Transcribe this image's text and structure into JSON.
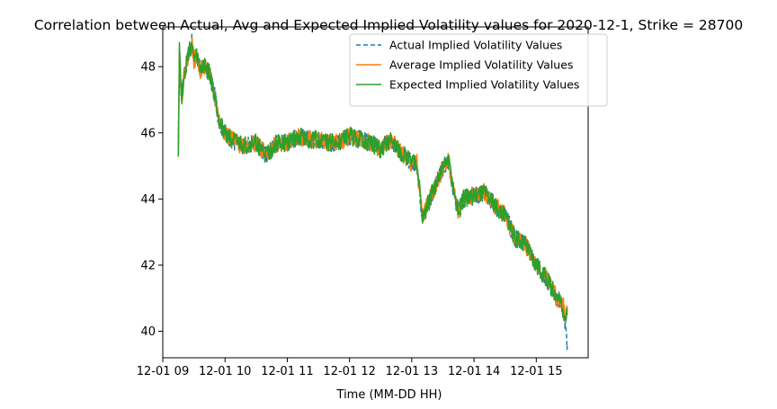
{
  "chart_data": {
    "type": "line",
    "title": "Correlation between Actual, Avg and Expected Implied Volatility values for 2020-12-1, Strike = 28700",
    "xlabel": "Time (MM-DD HH)",
    "ylabel": "",
    "x_ticks": [
      "12-01 09",
      "12-01 10",
      "12-01 11",
      "12-01 12",
      "12-01 13",
      "12-01 14",
      "12-01 15"
    ],
    "y_ticks": [
      "40",
      "42",
      "44",
      "46",
      "48"
    ],
    "xlim": [
      "2020-12-01 09:00",
      "2020-12-01 15:50"
    ],
    "ylim": [
      39.2,
      49.2
    ],
    "grid": false,
    "legend_position": "top-right",
    "series": [
      {
        "name": "Actual Implied Volatility Values",
        "color": "#1f77b4",
        "style": "dashed",
        "x": [
          "2020-12-01 09:15",
          "2020-12-01 09:16",
          "2020-12-01 09:18",
          "2020-12-01 09:20",
          "2020-12-01 09:22",
          "2020-12-01 09:25",
          "2020-12-01 09:28",
          "2020-12-01 09:30",
          "2020-12-01 09:33",
          "2020-12-01 09:36",
          "2020-12-01 09:40",
          "2020-12-01 09:45",
          "2020-12-01 09:50",
          "2020-12-01 09:55",
          "2020-12-01 10:00",
          "2020-12-01 10:10",
          "2020-12-01 10:20",
          "2020-12-01 10:30",
          "2020-12-01 10:40",
          "2020-12-01 10:50",
          "2020-12-01 11:00",
          "2020-12-01 11:10",
          "2020-12-01 11:20",
          "2020-12-01 11:30",
          "2020-12-01 11:40",
          "2020-12-01 11:50",
          "2020-12-01 12:00",
          "2020-12-01 12:10",
          "2020-12-01 12:20",
          "2020-12-01 12:30",
          "2020-12-01 12:40",
          "2020-12-01 12:50",
          "2020-12-01 13:00",
          "2020-12-01 13:05",
          "2020-12-01 13:10",
          "2020-12-01 13:15",
          "2020-12-01 13:25",
          "2020-12-01 13:35",
          "2020-12-01 13:40",
          "2020-12-01 13:45",
          "2020-12-01 13:50",
          "2020-12-01 14:00",
          "2020-12-01 14:10",
          "2020-12-01 14:20",
          "2020-12-01 14:30",
          "2020-12-01 14:40",
          "2020-12-01 14:50",
          "2020-12-01 15:00",
          "2020-12-01 15:10",
          "2020-12-01 15:20",
          "2020-12-01 15:25",
          "2020-12-01 15:28",
          "2020-12-01 15:30"
        ],
        "y": [
          45.4,
          48.6,
          47.0,
          47.6,
          48.0,
          48.4,
          48.7,
          48.2,
          48.3,
          47.9,
          48.0,
          47.8,
          47.1,
          46.3,
          46.0,
          45.7,
          45.6,
          45.7,
          45.3,
          45.7,
          45.7,
          45.9,
          45.8,
          45.8,
          45.7,
          45.7,
          45.9,
          45.8,
          45.7,
          45.5,
          45.8,
          45.4,
          45.1,
          45.1,
          43.4,
          43.8,
          44.6,
          45.2,
          44.3,
          43.6,
          44.0,
          44.1,
          44.2,
          43.8,
          43.5,
          42.8,
          42.6,
          42.0,
          41.6,
          41.0,
          40.8,
          40.2,
          39.6
        ]
      },
      {
        "name": "Average Implied Volatility Values",
        "color": "#ff7f0e",
        "style": "solid",
        "x": [
          "2020-12-01 09:15",
          "2020-12-01 09:16",
          "2020-12-01 09:18",
          "2020-12-01 09:20",
          "2020-12-01 09:22",
          "2020-12-01 09:25",
          "2020-12-01 09:28",
          "2020-12-01 09:30",
          "2020-12-01 09:33",
          "2020-12-01 09:36",
          "2020-12-01 09:40",
          "2020-12-01 09:45",
          "2020-12-01 09:50",
          "2020-12-01 09:55",
          "2020-12-01 10:00",
          "2020-12-01 10:10",
          "2020-12-01 10:20",
          "2020-12-01 10:30",
          "2020-12-01 10:40",
          "2020-12-01 10:50",
          "2020-12-01 11:00",
          "2020-12-01 11:10",
          "2020-12-01 11:20",
          "2020-12-01 11:30",
          "2020-12-01 11:40",
          "2020-12-01 11:50",
          "2020-12-01 12:00",
          "2020-12-01 12:10",
          "2020-12-01 12:20",
          "2020-12-01 12:30",
          "2020-12-01 12:40",
          "2020-12-01 12:50",
          "2020-12-01 13:00",
          "2020-12-01 13:05",
          "2020-12-01 13:10",
          "2020-12-01 13:15",
          "2020-12-01 13:25",
          "2020-12-01 13:35",
          "2020-12-01 13:40",
          "2020-12-01 13:45",
          "2020-12-01 13:50",
          "2020-12-01 14:00",
          "2020-12-01 14:10",
          "2020-12-01 14:20",
          "2020-12-01 14:30",
          "2020-12-01 14:40",
          "2020-12-01 14:50",
          "2020-12-01 15:00",
          "2020-12-01 15:10",
          "2020-12-01 15:20",
          "2020-12-01 15:25",
          "2020-12-01 15:28",
          "2020-12-01 15:30"
        ],
        "y": [
          45.5,
          48.6,
          47.0,
          47.6,
          48.0,
          48.4,
          48.7,
          48.2,
          48.3,
          47.9,
          48.0,
          47.8,
          47.1,
          46.3,
          46.0,
          45.7,
          45.6,
          45.7,
          45.3,
          45.7,
          45.7,
          45.9,
          45.8,
          45.8,
          45.7,
          45.7,
          45.9,
          45.8,
          45.7,
          45.5,
          45.8,
          45.4,
          45.1,
          45.1,
          43.5,
          43.8,
          44.6,
          45.2,
          44.3,
          43.6,
          44.0,
          44.1,
          44.2,
          43.8,
          43.5,
          42.8,
          42.6,
          42.0,
          41.6,
          41.0,
          40.9,
          40.5,
          40.6
        ]
      },
      {
        "name": "Expected Implied Volatility Values",
        "color": "#2ca02c",
        "style": "solid",
        "x": [
          "2020-12-01 09:15",
          "2020-12-01 09:16",
          "2020-12-01 09:18",
          "2020-12-01 09:20",
          "2020-12-01 09:22",
          "2020-12-01 09:25",
          "2020-12-01 09:28",
          "2020-12-01 09:30",
          "2020-12-01 09:33",
          "2020-12-01 09:36",
          "2020-12-01 09:40",
          "2020-12-01 09:45",
          "2020-12-01 09:50",
          "2020-12-01 09:55",
          "2020-12-01 10:00",
          "2020-12-01 10:10",
          "2020-12-01 10:20",
          "2020-12-01 10:30",
          "2020-12-01 10:40",
          "2020-12-01 10:50",
          "2020-12-01 11:00",
          "2020-12-01 11:10",
          "2020-12-01 11:20",
          "2020-12-01 11:30",
          "2020-12-01 11:40",
          "2020-12-01 11:50",
          "2020-12-01 12:00",
          "2020-12-01 12:10",
          "2020-12-01 12:20",
          "2020-12-01 12:30",
          "2020-12-01 12:40",
          "2020-12-01 12:50",
          "2020-12-01 13:00",
          "2020-12-01 13:05",
          "2020-12-01 13:10",
          "2020-12-01 13:15",
          "2020-12-01 13:25",
          "2020-12-01 13:35",
          "2020-12-01 13:40",
          "2020-12-01 13:45",
          "2020-12-01 13:50",
          "2020-12-01 14:00",
          "2020-12-01 14:10",
          "2020-12-01 14:20",
          "2020-12-01 14:30",
          "2020-12-01 14:40",
          "2020-12-01 14:50",
          "2020-12-01 15:00",
          "2020-12-01 15:10",
          "2020-12-01 15:20",
          "2020-12-01 15:25",
          "2020-12-01 15:28",
          "2020-12-01 15:30"
        ],
        "y": [
          45.4,
          48.7,
          47.0,
          47.6,
          48.0,
          48.4,
          48.7,
          48.2,
          48.3,
          47.9,
          48.0,
          47.8,
          47.1,
          46.3,
          46.0,
          45.7,
          45.6,
          45.7,
          45.3,
          45.7,
          45.7,
          45.9,
          45.8,
          45.8,
          45.7,
          45.7,
          45.9,
          45.8,
          45.7,
          45.5,
          45.8,
          45.4,
          45.1,
          45.1,
          43.4,
          43.8,
          44.6,
          45.2,
          44.3,
          43.6,
          44.0,
          44.1,
          44.2,
          43.8,
          43.5,
          42.8,
          42.6,
          42.0,
          41.6,
          41.0,
          40.8,
          40.4,
          40.5
        ]
      }
    ]
  }
}
